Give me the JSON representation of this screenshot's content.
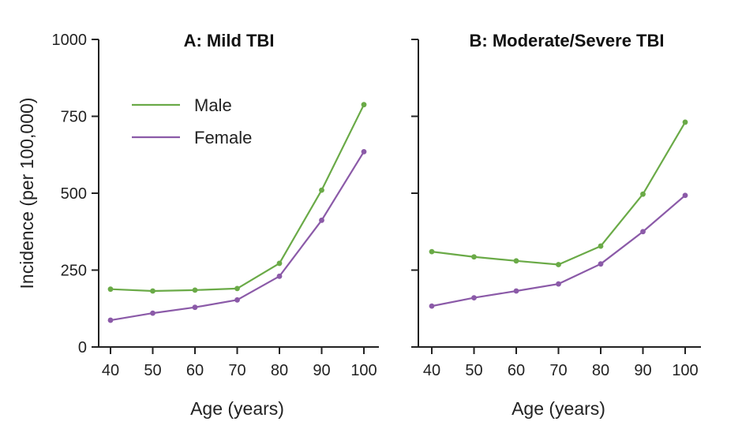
{
  "chart_data": [
    {
      "type": "line",
      "title": "A: Mild TBI",
      "xlabel": "Age (years)",
      "ylabel": "Incidence (per 100,000)",
      "x": [
        40,
        50,
        60,
        70,
        80,
        90,
        100
      ],
      "xticks": [
        "40",
        "50",
        "60",
        "70",
        "80",
        "90",
        "100"
      ],
      "yticks": [
        "0",
        "250",
        "500",
        "750",
        "1000"
      ],
      "ylim": [
        0,
        1000
      ],
      "xlim": [
        38,
        103
      ],
      "legend": "upper-left",
      "series": [
        {
          "name": "Male",
          "color": "#6aaa47",
          "values": [
            188,
            182,
            185,
            190,
            272,
            510,
            788
          ]
        },
        {
          "name": "Female",
          "color": "#8b5aa8",
          "values": [
            87,
            110,
            129,
            153,
            230,
            412,
            635
          ]
        }
      ]
    },
    {
      "type": "line",
      "title": "B: Moderate/Severe TBI",
      "xlabel": "Age (years)",
      "ylabel": "",
      "x": [
        40,
        50,
        60,
        70,
        80,
        90,
        100
      ],
      "xticks": [
        "40",
        "50",
        "60",
        "70",
        "80",
        "90",
        "100"
      ],
      "yticks": [],
      "ylim": [
        0,
        1000
      ],
      "xlim": [
        38,
        103
      ],
      "series": [
        {
          "name": "Male",
          "color": "#6aaa47",
          "values": [
            310,
            293,
            280,
            268,
            328,
            497,
            731
          ]
        },
        {
          "name": "Female",
          "color": "#8b5aa8",
          "values": [
            133,
            160,
            182,
            205,
            270,
            375,
            493
          ]
        }
      ]
    }
  ],
  "legend": {
    "male_label": "Male",
    "female_label": "Female",
    "male_color": "#6aaa47",
    "female_color": "#8b5aa8"
  }
}
